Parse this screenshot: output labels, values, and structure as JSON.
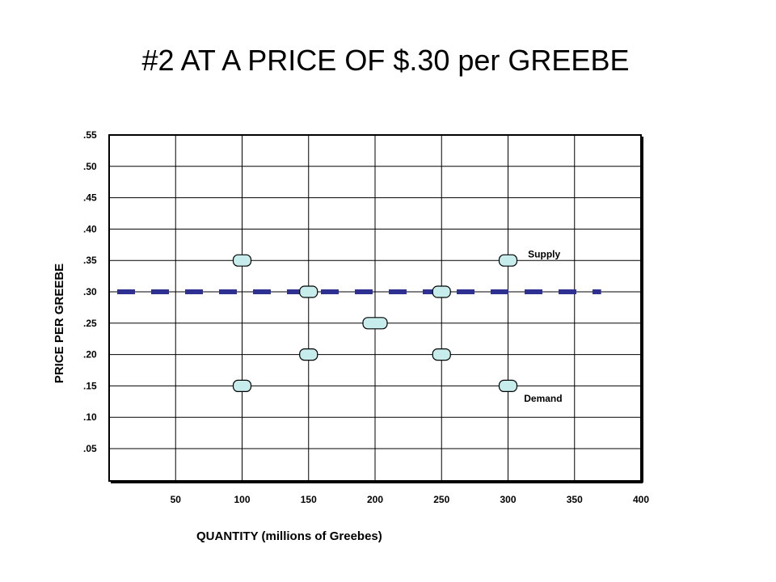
{
  "slide": {
    "title": "#2 AT A PRICE OF $.30 per GREEBE"
  },
  "chart_data": {
    "type": "scatter",
    "title": "#2 AT A PRICE OF $.30 per GREEBE",
    "xlabel": "QUANTITY  (millions of Greebes)",
    "ylabel": "PRICE PER GREEBE",
    "xlim": [
      0,
      400
    ],
    "ylim": [
      0.0,
      0.55
    ],
    "x_ticks": [
      50,
      100,
      150,
      200,
      250,
      300,
      350,
      400
    ],
    "x_tick_labels": [
      "50",
      "100",
      "150",
      "200",
      "250",
      "300",
      "350",
      "400"
    ],
    "y_ticks": [
      0.05,
      0.1,
      0.15,
      0.2,
      0.25,
      0.3,
      0.35,
      0.4,
      0.45,
      0.5,
      0.55
    ],
    "y_tick_labels": [
      ".05",
      ".10",
      ".15",
      ".20",
      ".25",
      ".30",
      ".35",
      ".40",
      ".45",
      ".50",
      ".55"
    ],
    "grid": true,
    "points": [
      {
        "x": 100,
        "y": 0.35
      },
      {
        "x": 300,
        "y": 0.35
      },
      {
        "x": 150,
        "y": 0.3
      },
      {
        "x": 250,
        "y": 0.3
      },
      {
        "x": 200,
        "y": 0.25
      },
      {
        "x": 150,
        "y": 0.2
      },
      {
        "x": 250,
        "y": 0.2
      },
      {
        "x": 100,
        "y": 0.15
      },
      {
        "x": 300,
        "y": 0.15
      }
    ],
    "price_line": {
      "y": 0.3,
      "x_start": 0,
      "x_end": 370,
      "color": "#2e3192",
      "style": "dashed"
    },
    "annotations": [
      {
        "text": "Supply",
        "x": 315,
        "y": 0.36
      },
      {
        "text": "Demand",
        "x": 312,
        "y": 0.13
      }
    ],
    "marker_fill": "#c7ecec",
    "marker_stroke": "#000000"
  }
}
